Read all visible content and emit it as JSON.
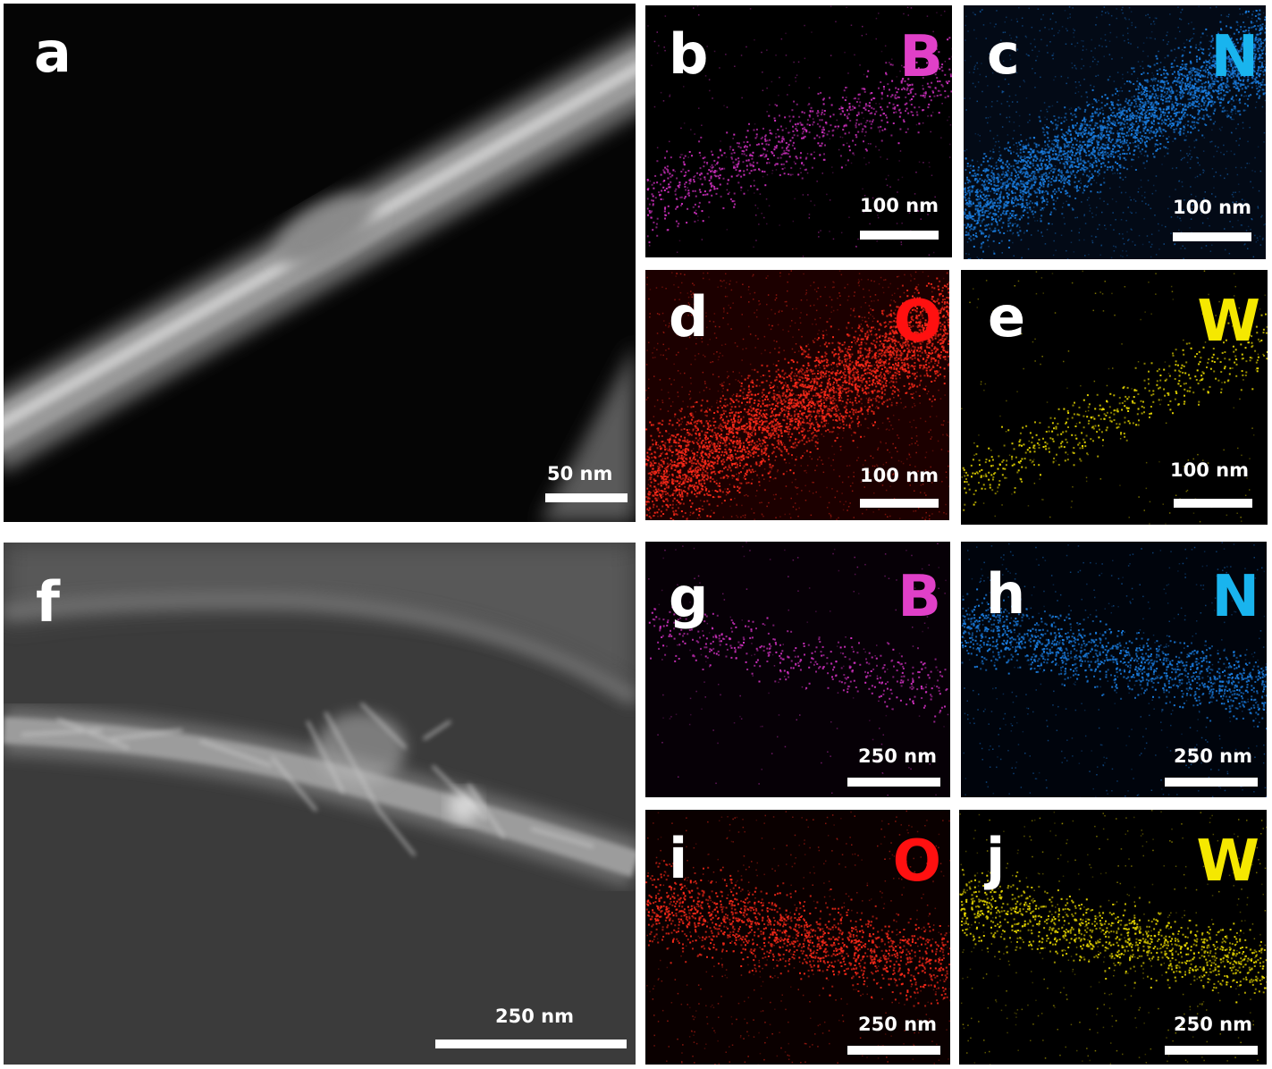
{
  "figure": {
    "panels": [
      {
        "id": "a",
        "letter": "a",
        "element": "",
        "scale": "50 nm",
        "kind": "haadf"
      },
      {
        "id": "b",
        "letter": "b",
        "element": "B",
        "element_color": "#e040c8",
        "dot_color": "#d030c0",
        "scale": "100 nm",
        "kind": "map"
      },
      {
        "id": "c",
        "letter": "c",
        "element": "N",
        "element_color": "#19b4ee",
        "dot_color": "#1a7de0",
        "scale": "100 nm",
        "kind": "map"
      },
      {
        "id": "d",
        "letter": "d",
        "element": "O",
        "element_color": "#ff1010",
        "dot_color": "#ff2a1a",
        "scale": "100 nm",
        "kind": "map"
      },
      {
        "id": "e",
        "letter": "e",
        "element": "W",
        "element_color": "#f5e800",
        "dot_color": "#e8d800",
        "scale": "100 nm",
        "kind": "map"
      },
      {
        "id": "f",
        "letter": "f",
        "element": "",
        "scale": "250 nm",
        "kind": "haadf"
      },
      {
        "id": "g",
        "letter": "g",
        "element": "B",
        "element_color": "#e040c8",
        "dot_color": "#d030c0",
        "scale": "250 nm",
        "kind": "map"
      },
      {
        "id": "h",
        "letter": "h",
        "element": "N",
        "element_color": "#19b4ee",
        "dot_color": "#1a7de0",
        "scale": "250 nm",
        "kind": "map"
      },
      {
        "id": "i",
        "letter": "i",
        "element": "O",
        "element_color": "#ff1010",
        "dot_color": "#ff2a1a",
        "scale": "250 nm",
        "kind": "map"
      },
      {
        "id": "j",
        "letter": "j",
        "element": "W",
        "element_color": "#f5e800",
        "dot_color": "#e8d800",
        "scale": "250 nm",
        "kind": "map"
      }
    ]
  }
}
